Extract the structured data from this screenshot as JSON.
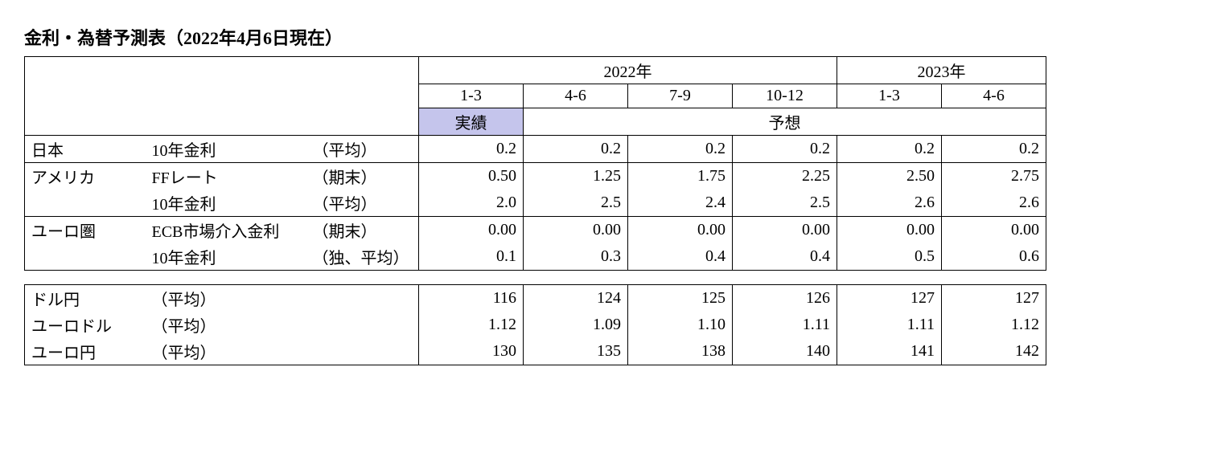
{
  "title": "金利・為替予測表（2022年4月6日現在）",
  "colors": {
    "actual_bg": "#c5c5ec",
    "border": "#000000",
    "background": "#ffffff"
  },
  "header": {
    "year2022": "2022年",
    "year2023": "2023年",
    "q1": "1-3",
    "q2": "4-6",
    "q3": "7-9",
    "q4": "10-12",
    "q5": "1-3",
    "q6": "4-6",
    "actual": "実績",
    "forecast": "予想"
  },
  "regions": {
    "japan": "日本",
    "usa": "アメリカ",
    "euro": "ユーロ圏"
  },
  "metrics": {
    "jp_10y": "10年金利",
    "jp_10y_note": "（平均）",
    "us_ff": "FFレート",
    "us_ff_note": "（期末）",
    "us_10y": "10年金利",
    "us_10y_note": "（平均）",
    "eu_ecb": "ECB市場介入金利",
    "eu_ecb_note": "（期末）",
    "eu_10y": "10年金利",
    "eu_10y_note": "（独、平均）",
    "usdjpy": "ドル円",
    "usdjpy_note": "（平均）",
    "eurodollar": "ユーロドル",
    "eurodollar_note": "（平均）",
    "eurojpy": "ユーロ円",
    "eurojpy_note": "（平均）"
  },
  "data": {
    "jp_10y": [
      "0.2",
      "0.2",
      "0.2",
      "0.2",
      "0.2",
      "0.2"
    ],
    "us_ff": [
      "0.50",
      "1.25",
      "1.75",
      "2.25",
      "2.50",
      "2.75"
    ],
    "us_10y": [
      "2.0",
      "2.5",
      "2.4",
      "2.5",
      "2.6",
      "2.6"
    ],
    "eu_ecb": [
      "0.00",
      "0.00",
      "0.00",
      "0.00",
      "0.00",
      "0.00"
    ],
    "eu_10y": [
      "0.1",
      "0.3",
      "0.4",
      "0.4",
      "0.5",
      "0.6"
    ],
    "usdjpy": [
      "116",
      "124",
      "125",
      "126",
      "127",
      "127"
    ],
    "eurodollar": [
      "1.12",
      "1.09",
      "1.10",
      "1.11",
      "1.11",
      "1.12"
    ],
    "eurojpy": [
      "130",
      "135",
      "138",
      "140",
      "141",
      "142"
    ]
  }
}
